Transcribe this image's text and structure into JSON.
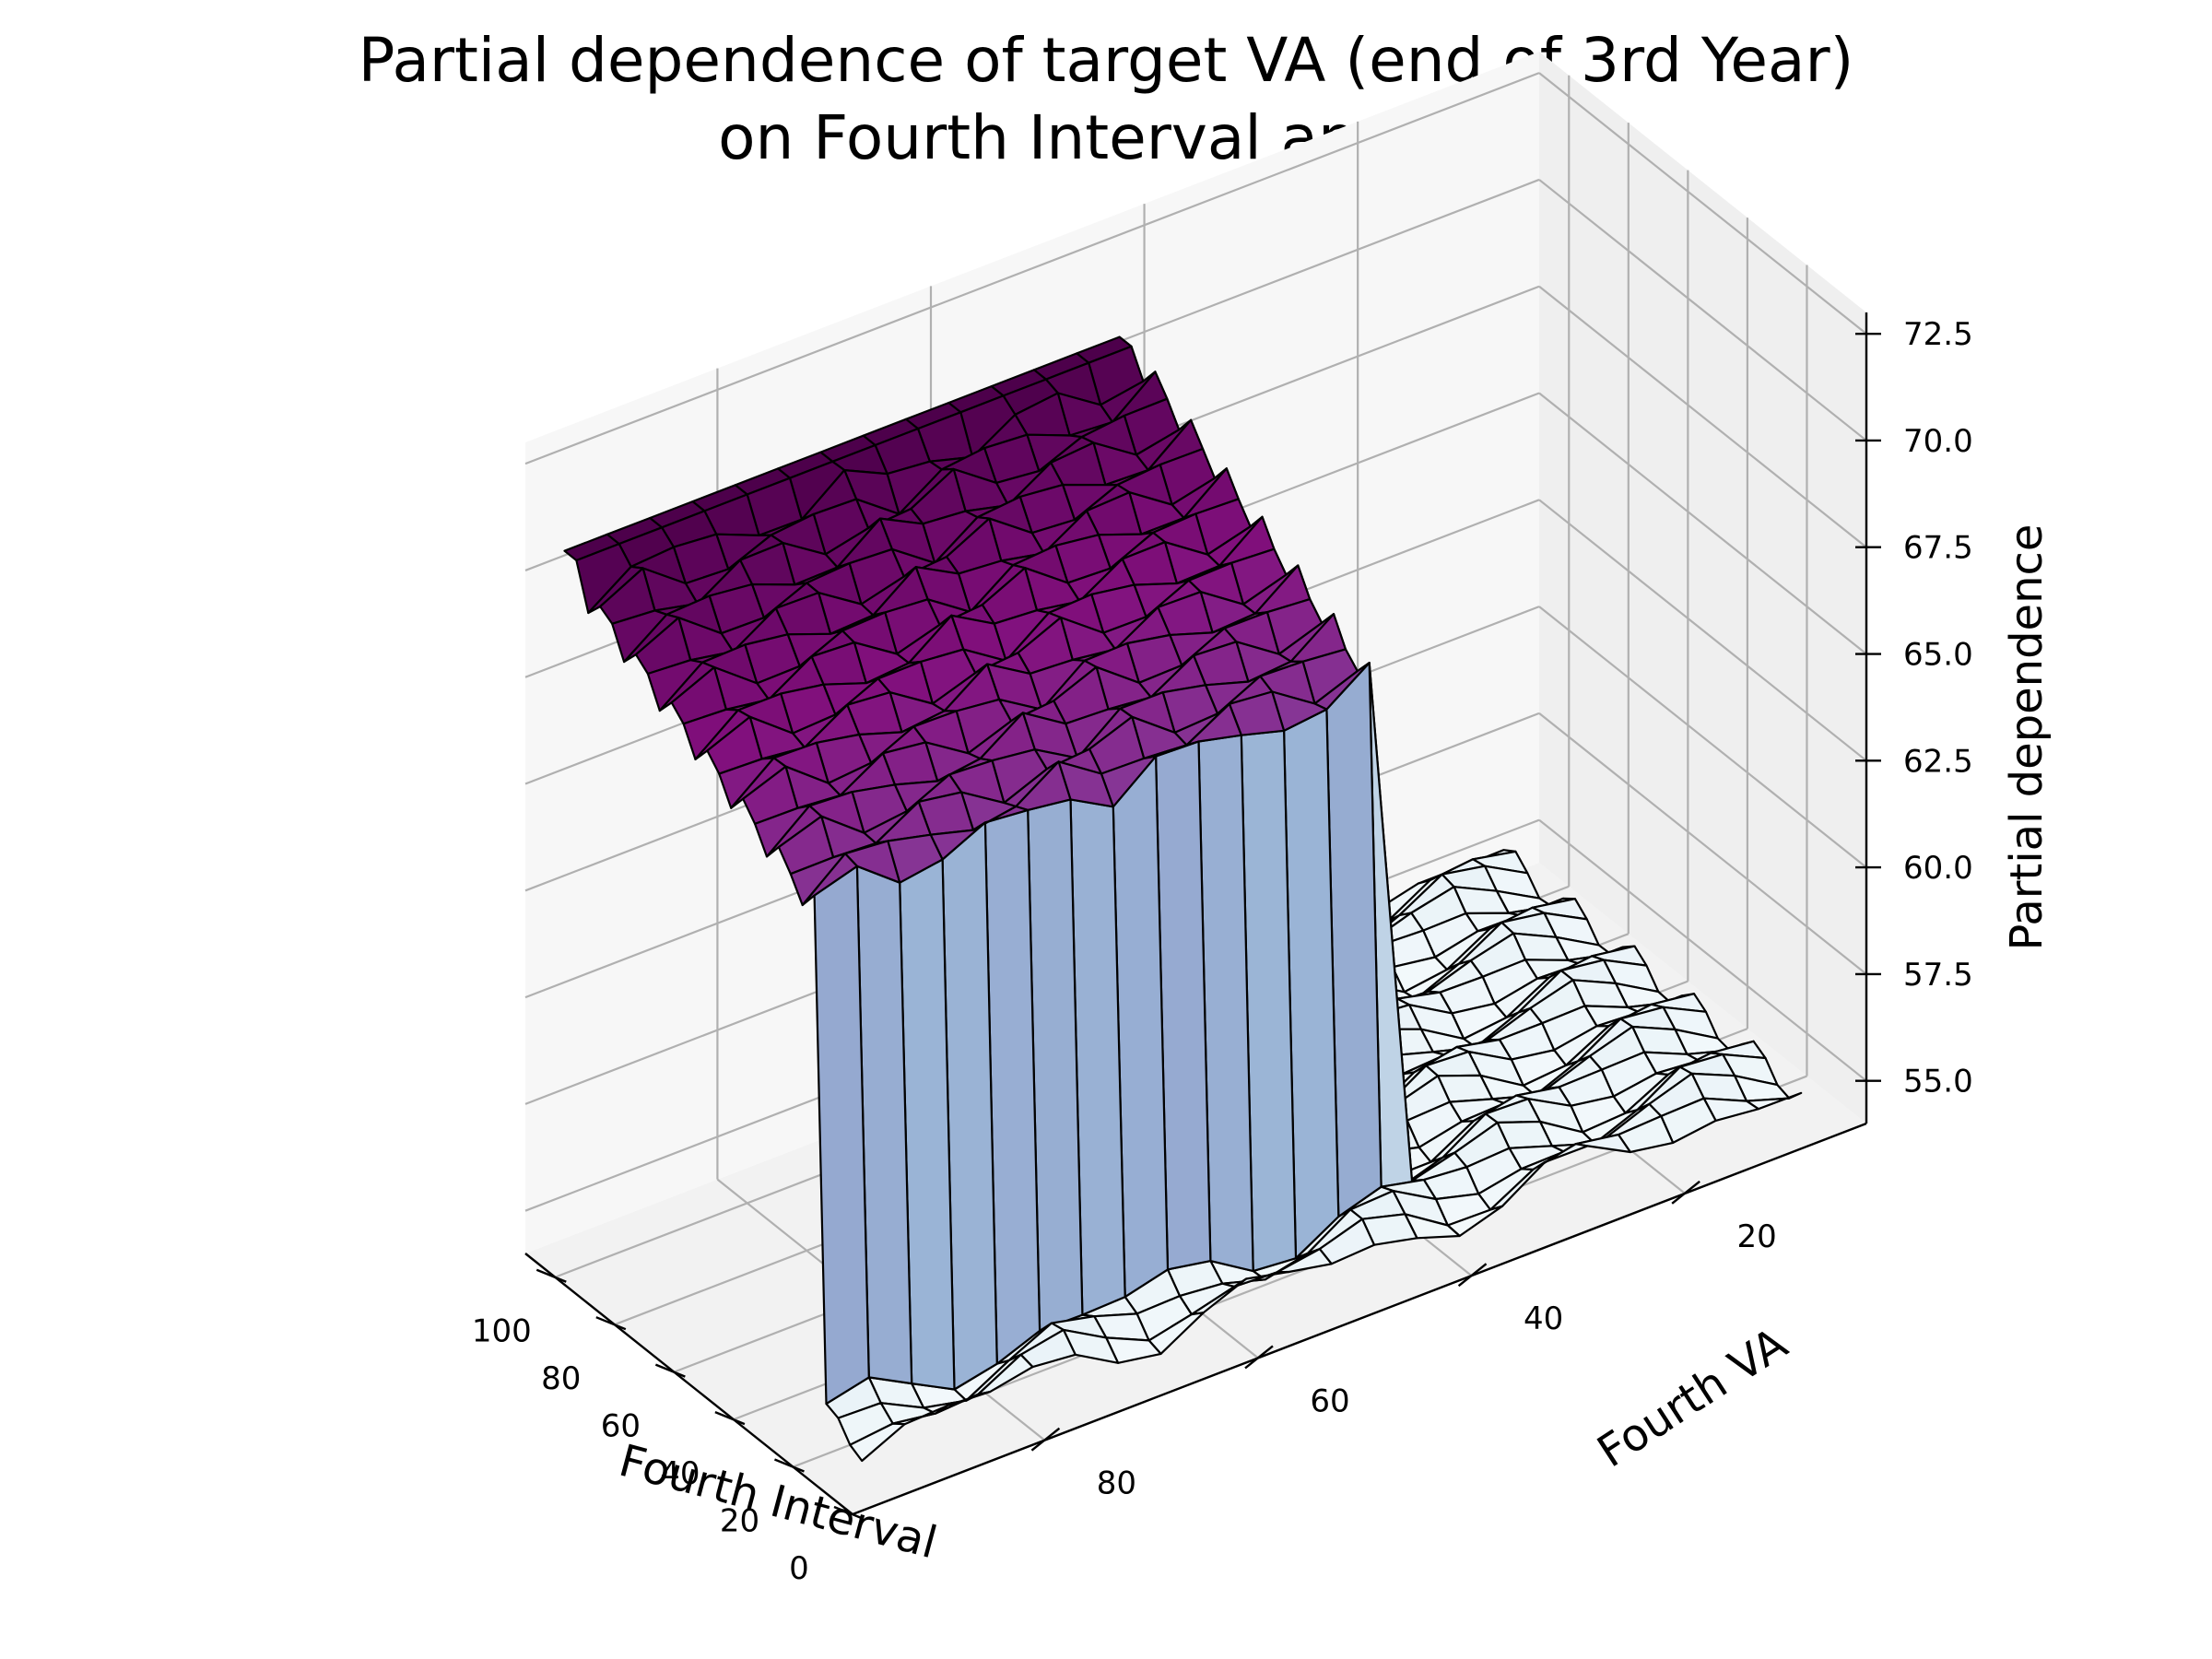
{
  "chart_data": {
    "type": "surface3d",
    "title": [
      "Partial dependence of target VA (end of 3rd Year)",
      "on Fourth Interval and VA"
    ],
    "x_axis": {
      "label": "Fourth Interval",
      "ticks": [
        "100",
        "80",
        "60",
        "40",
        "20",
        "0"
      ],
      "range": [
        0,
        110
      ]
    },
    "y_axis": {
      "label": "Fourth VA",
      "ticks": [
        "20",
        "40",
        "60",
        "80"
      ],
      "range": [
        3,
        98
      ]
    },
    "z_axis": {
      "label": "Partial dependence",
      "ticks": [
        "55.0",
        "57.5",
        "60.0",
        "62.5",
        "65.0",
        "67.5",
        "70.0",
        "72.5"
      ],
      "range": [
        54.0,
        73.0
      ]
    },
    "colormap": "BuPu",
    "surface": {
      "interval_grid": [
        4,
        8,
        12,
        16,
        20,
        24,
        28,
        32,
        36,
        40,
        44,
        48,
        52,
        56,
        60,
        64,
        68,
        72,
        76,
        80,
        84,
        88,
        92,
        96,
        100,
        104
      ],
      "va_grid": [
        8,
        12,
        16,
        20,
        24,
        28,
        32,
        36,
        40,
        44,
        48,
        52,
        56,
        60,
        64,
        68,
        72,
        76,
        80,
        84,
        88,
        92,
        96
      ],
      "high_region_va_threshold": 40,
      "high_region_interval_start": 20,
      "low_plateau": 55.2,
      "high_plateau_at_interval_0": 66.3,
      "high_plateau_at_interval_100": 70.3,
      "ridge_interval": 100,
      "ridge_value": 70.6
    },
    "grid": true
  }
}
